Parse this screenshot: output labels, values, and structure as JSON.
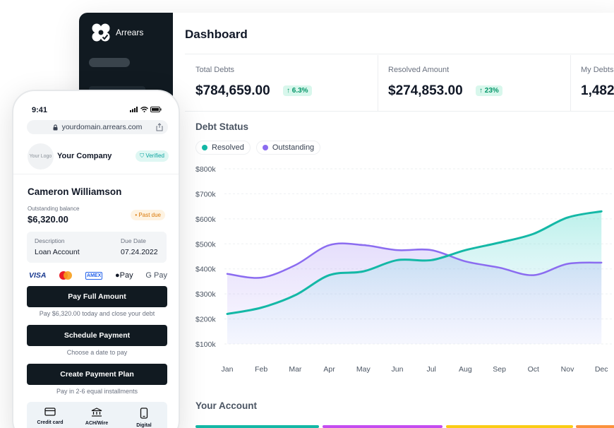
{
  "app": {
    "name": "Arrears"
  },
  "dashboard": {
    "title": "Dashboard",
    "stats": [
      {
        "label": "Total Debts",
        "value": "$784,659.00",
        "change": "6.3%"
      },
      {
        "label": "Resolved Amount",
        "value": "$274,853.00",
        "change": "23%"
      },
      {
        "label": "My Debts",
        "value": "1,482"
      }
    ],
    "debt_status_title": "Debt Status",
    "your_account_title": "Your Account",
    "legend": [
      {
        "label": "Resolved",
        "color": "#14b8a6"
      },
      {
        "label": "Outstanding",
        "color": "#8b6cf0"
      }
    ]
  },
  "chart_data": {
    "type": "area",
    "categories": [
      "Jan",
      "Feb",
      "Mar",
      "Apr",
      "May",
      "Jun",
      "Jul",
      "Aug",
      "Sep",
      "Oct",
      "Nov",
      "Dec"
    ],
    "y_tick_labels": [
      "$800k",
      "$700k",
      "$600k",
      "$500k",
      "$400k",
      "$300k",
      "$200k",
      "$100k"
    ],
    "ylim": [
      100000,
      800000
    ],
    "grid": true,
    "series": [
      {
        "name": "Resolved",
        "color": "#14b8a6",
        "values": [
          220000,
          245000,
          295000,
          375000,
          390000,
          435000,
          435000,
          475000,
          505000,
          540000,
          605000,
          630000
        ]
      },
      {
        "name": "Outstanding",
        "color": "#8b6cf0",
        "values": [
          380000,
          365000,
          415000,
          495000,
          495000,
          475000,
          475000,
          430000,
          405000,
          375000,
          420000,
          425000
        ]
      }
    ]
  },
  "phone": {
    "time": "9:41",
    "url": "yourdomain.arrears.com",
    "logo_placeholder": "Your Logo",
    "company_name": "Your Company",
    "verified_label": "Verified",
    "customer_name": "Cameron Williamson",
    "balance_label": "Outstanding balance",
    "balance_value": "$6,320.00",
    "past_due_label": "Past due",
    "description_label": "Description",
    "description_value": "Loan Account",
    "due_date_label": "Due Date",
    "due_date_value": "07.24.2022",
    "payment_methods": [
      "VISA",
      "AMEX",
      "Pay",
      "G Pay"
    ],
    "actions": [
      {
        "label": "Pay Full Amount",
        "sub": "Pay $6,320.00 today and close your debt"
      },
      {
        "label": "Schedule Payment",
        "sub": "Choose a date to pay"
      },
      {
        "label": "Create Payment Plan",
        "sub": "Pay in 2-6 equal installments"
      }
    ],
    "methods_panel": [
      "Credit card",
      "ACH/Wire",
      "Digital"
    ]
  }
}
